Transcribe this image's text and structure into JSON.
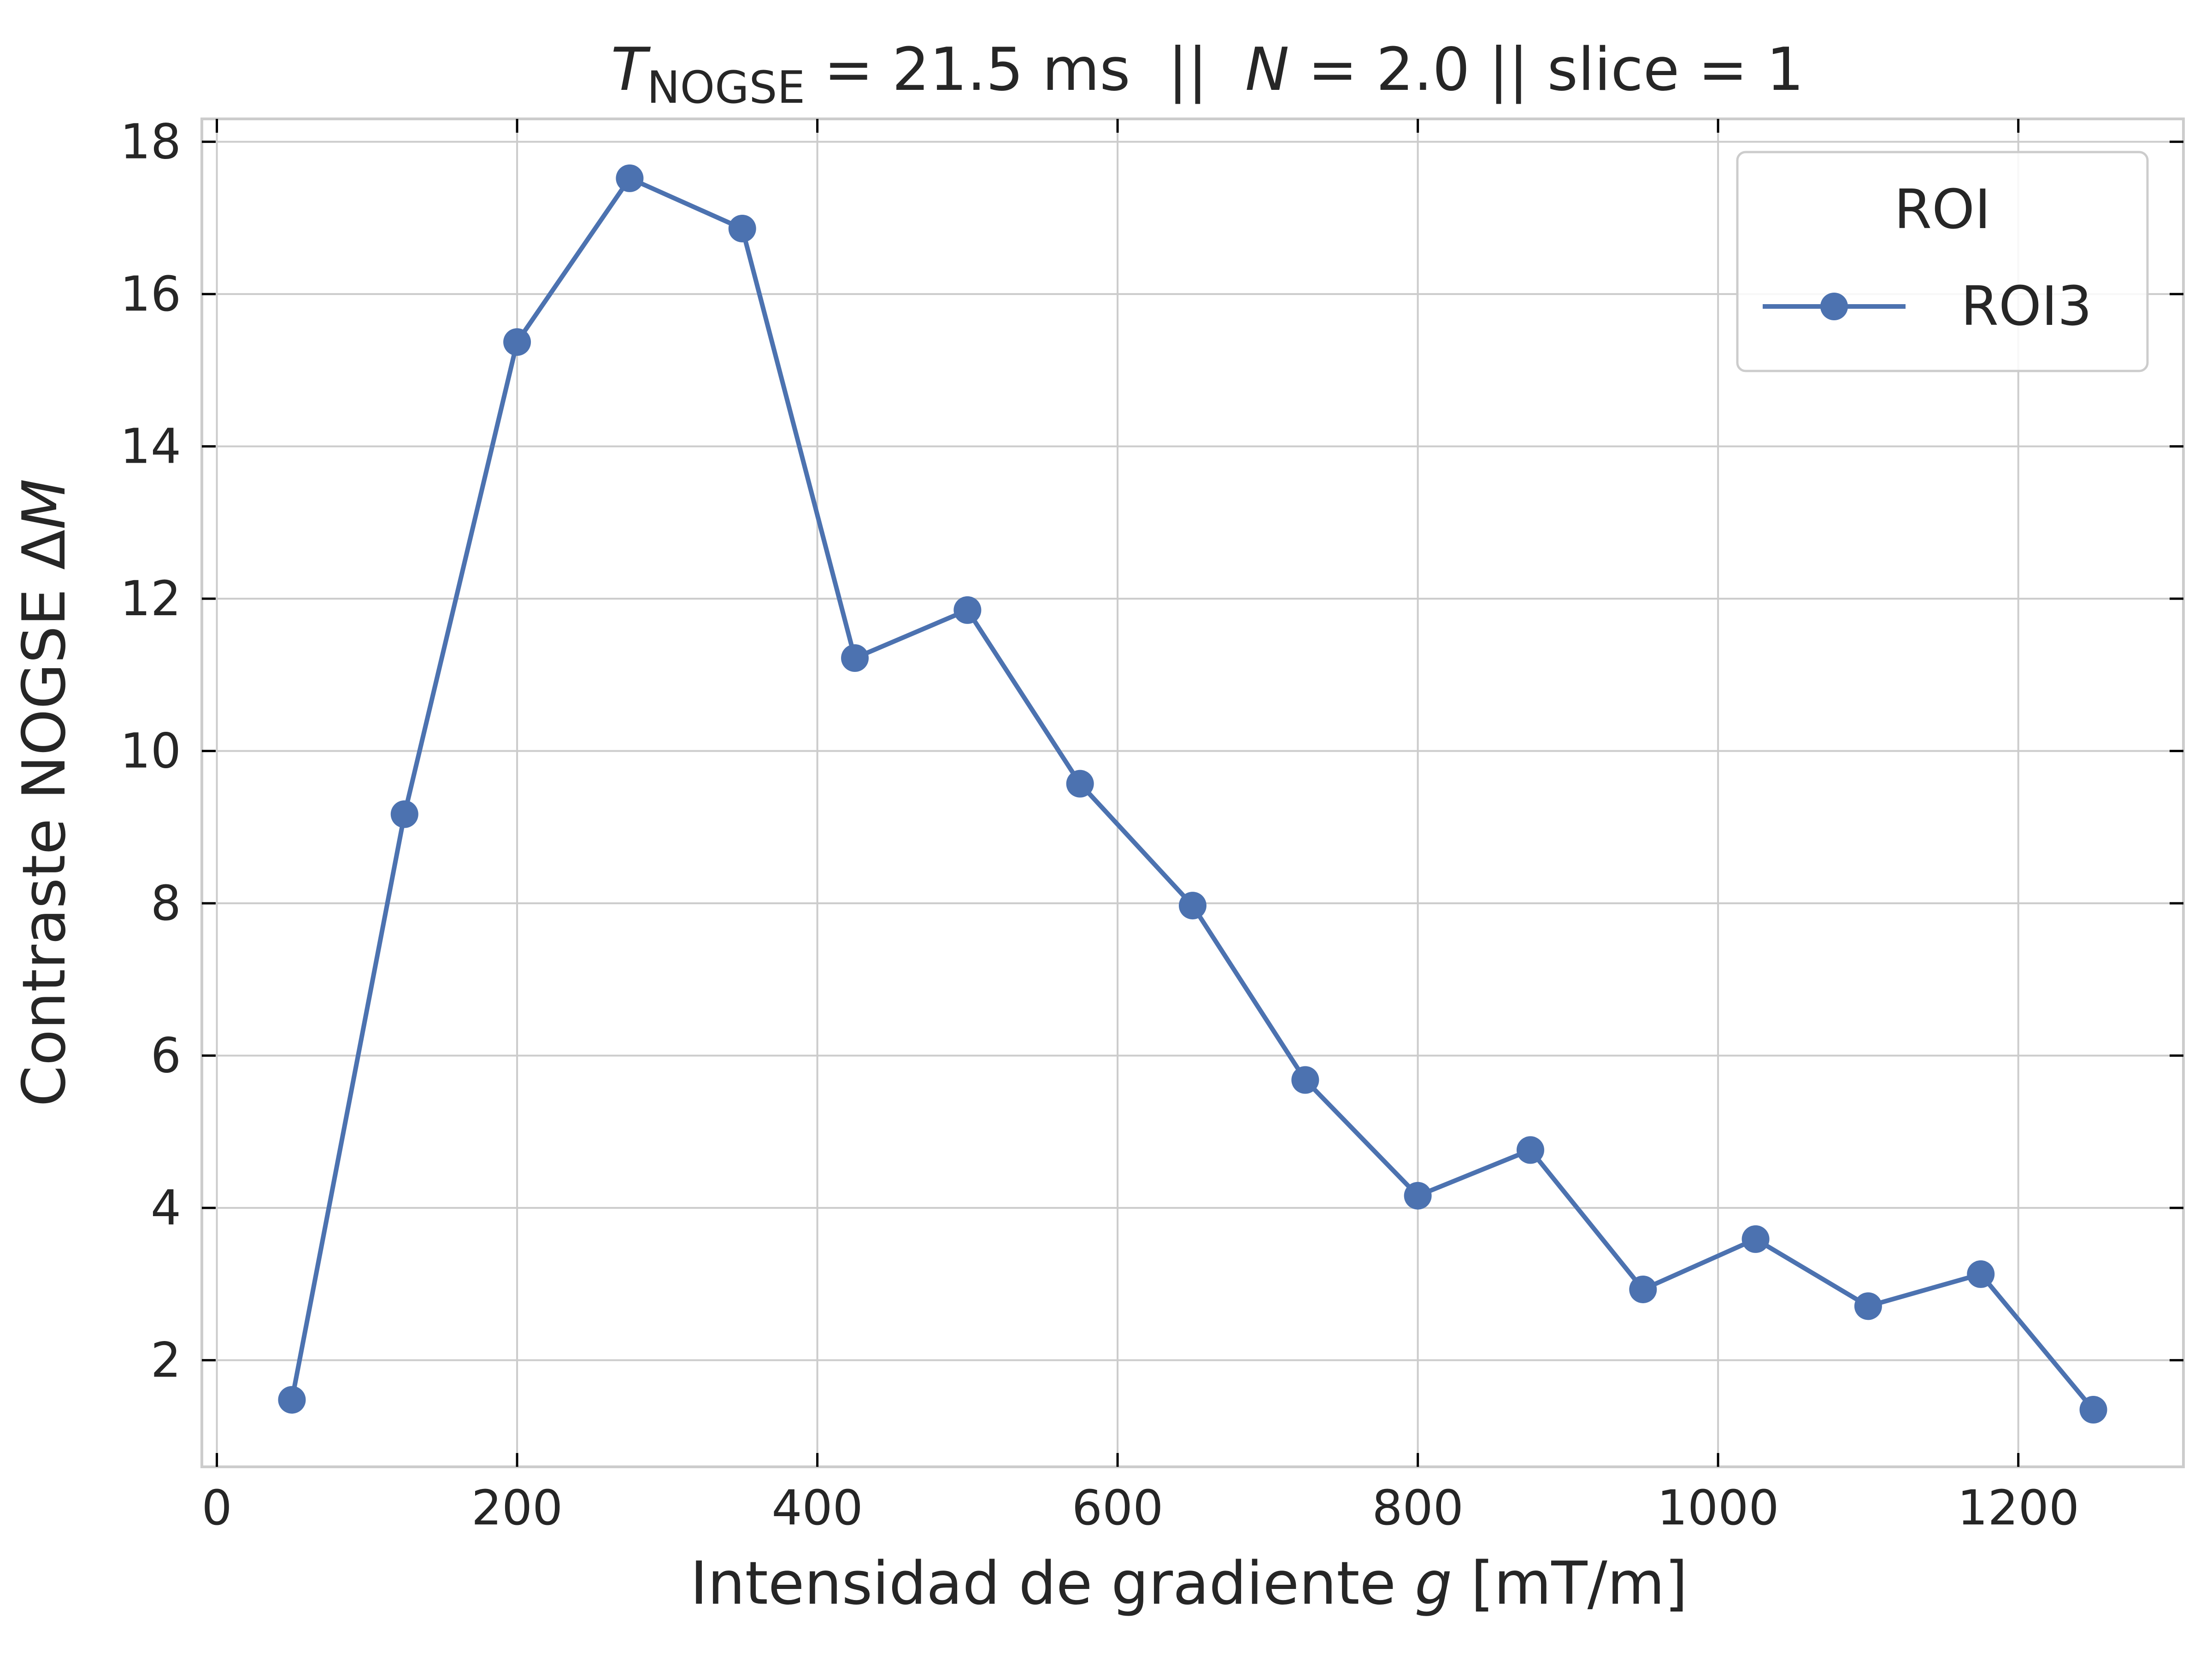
{
  "chart_data": {
    "type": "line",
    "title": {
      "symbol": "T",
      "subscript": "NOGSE",
      "rest_part1": " = 21.5 ms  ||  ",
      "symbol_n": "N",
      "rest_part2": " = 2.0 || slice = 1"
    },
    "xlabel": {
      "text": "Intensidad de gradiente ",
      "variable": "g",
      "unit": " [mT/m]"
    },
    "ylabel": {
      "text": "Contraste NOGSE Δ",
      "variable": "M"
    },
    "xlim": [
      -10,
      1310
    ],
    "ylim": [
      0.6,
      18.3
    ],
    "xticks": [
      0,
      200,
      400,
      600,
      800,
      1000,
      1200
    ],
    "yticks": [
      2,
      4,
      6,
      8,
      10,
      12,
      14,
      16,
      18
    ],
    "grid": true,
    "legend": {
      "title": "ROI",
      "position": "top-right"
    },
    "series": [
      {
        "name": "ROI3",
        "color": "#4c72b0",
        "marker": "circle",
        "x": [
          50,
          125,
          200,
          275,
          350,
          425,
          500,
          575,
          650,
          725,
          800,
          875,
          950,
          1025,
          1100,
          1175,
          1250
        ],
        "y": [
          1.48,
          9.17,
          15.37,
          17.52,
          16.86,
          11.22,
          11.85,
          9.57,
          7.97,
          5.68,
          4.16,
          4.76,
          2.93,
          3.59,
          2.71,
          3.13,
          1.35
        ]
      }
    ]
  }
}
